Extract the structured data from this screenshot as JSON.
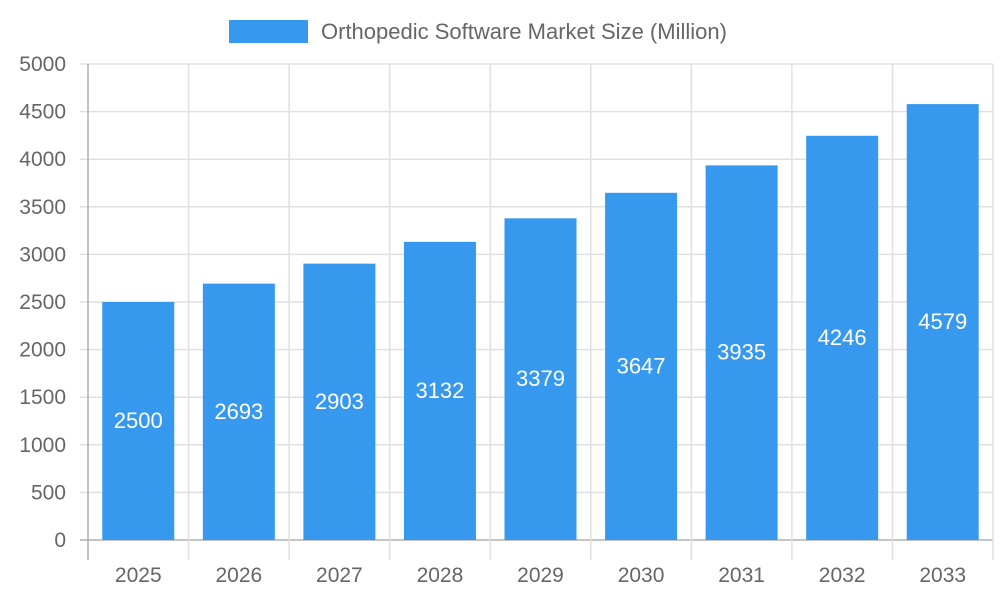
{
  "chart_data": {
    "type": "bar",
    "title": "",
    "xlabel": "",
    "ylabel": "",
    "categories": [
      "2025",
      "2026",
      "2027",
      "2028",
      "2029",
      "2030",
      "2031",
      "2032",
      "2033"
    ],
    "series": [
      {
        "name": "Orthopedic Software Market Size (Million)",
        "values": [
          2500,
          2693,
          2903,
          3132,
          3379,
          3647,
          3935,
          4246,
          4579
        ],
        "color": "#3799ee"
      }
    ],
    "ylim": [
      0,
      5000
    ],
    "yticks": [
      0,
      500,
      1000,
      1500,
      2000,
      2500,
      3000,
      3500,
      4000,
      4500,
      5000
    ],
    "grid": true,
    "legend_position": "top",
    "data_labels": true,
    "data_label_color": "#ffffff",
    "tick_label_color": "#666666",
    "grid_color": "#e0e0e0"
  }
}
